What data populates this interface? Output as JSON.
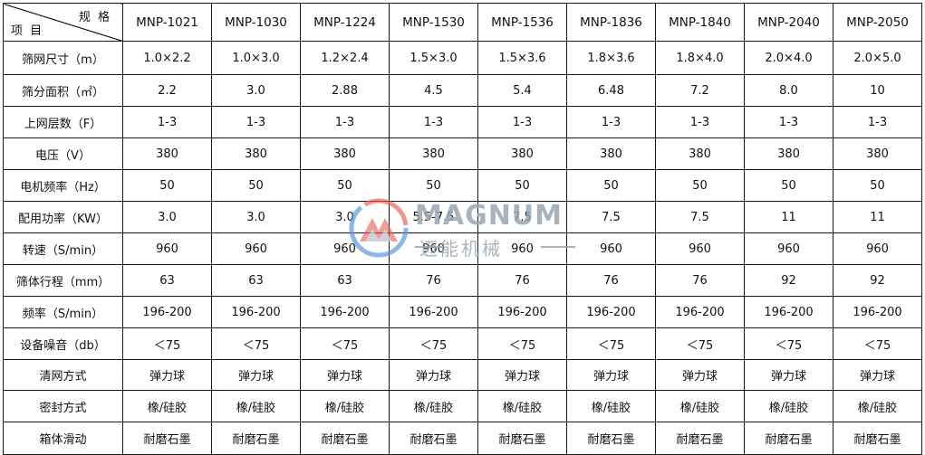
{
  "corner": {
    "spec_label": "规 格",
    "item_label": "项 目"
  },
  "models": [
    "MNP-1021",
    "MNP-1030",
    "MNP-1224",
    "MNP-1530",
    "MNP-1536",
    "MNP-1836",
    "MNP-1840",
    "MNP-2040",
    "MNP-2050"
  ],
  "rows": [
    {
      "label": "筛网尺寸（m）",
      "values": [
        "1.0×2.2",
        "1.0×3.0",
        "1.2×2.4",
        "1.5×3.0",
        "1.5×3.6",
        "1.8×3.6",
        "1.8×4.0",
        "2.0×4.0",
        "2.0×5.0"
      ]
    },
    {
      "label": "筛分面积（㎡）",
      "values": [
        "2.2",
        "3.0",
        "2.88",
        "4.5",
        "5.4",
        "6.48",
        "7.2",
        "8.0",
        "10"
      ]
    },
    {
      "label": "上网层数（F）",
      "values": [
        "1-3",
        "1-3",
        "1-3",
        "1-3",
        "1-3",
        "1-3",
        "1-3",
        "1-3",
        "1-3"
      ]
    },
    {
      "label": "电压（V）",
      "values": [
        "380",
        "380",
        "380",
        "380",
        "380",
        "380",
        "380",
        "380",
        "380"
      ]
    },
    {
      "label": "电机频率（Hz）",
      "values": [
        "50",
        "50",
        "50",
        "50",
        "50",
        "50",
        "50",
        "50",
        "50"
      ]
    },
    {
      "label": "配用功率（KW）",
      "values": [
        "3.0",
        "3.0",
        "3.0",
        "5.5-7.5",
        "7.5",
        "7.5",
        "7.5",
        "11",
        "11"
      ]
    },
    {
      "label": "转速（S/min）",
      "values": [
        "960",
        "960",
        "960",
        "960",
        "960",
        "960",
        "960",
        "960",
        "960"
      ]
    },
    {
      "label": "筛体行程（mm）",
      "values": [
        "63",
        "63",
        "63",
        "76",
        "76",
        "76",
        "76",
        "92",
        "92"
      ]
    },
    {
      "label": "频率（S/min）",
      "values": [
        "196-200",
        "196-200",
        "196-200",
        "196-200",
        "196-200",
        "196-200",
        "196-200",
        "196-200",
        "196-200"
      ]
    },
    {
      "label": "设备噪音（db）",
      "values": [
        "＜75",
        "＜75",
        "＜75",
        "＜75",
        "＜75",
        "＜75",
        "＜75",
        "＜75",
        "＜75"
      ]
    },
    {
      "label": "清网方式",
      "values": [
        "弹力球",
        "弹力球",
        "弹力球",
        "弹力球",
        "弹力球",
        "弹力球",
        "弹力球",
        "弹力球",
        "弹力球"
      ]
    },
    {
      "label": "密封方式",
      "values": [
        "橡/硅胶",
        "橡/硅胶",
        "橡/硅胶",
        "橡/硅胶",
        "橡/硅胶",
        "橡/硅胶",
        "橡/硅胶",
        "橡/硅胶",
        "橡/硅胶"
      ]
    },
    {
      "label": "箱体滑动",
      "values": [
        "耐磨石墨",
        "耐磨石墨",
        "耐磨石墨",
        "耐磨石墨",
        "耐磨石墨",
        "耐磨石墨",
        "耐磨石墨",
        "耐磨石墨",
        "耐磨石墨"
      ]
    }
  ],
  "watermark": {
    "brand": "MAGNUM",
    "subtitle": "迈能机械",
    "icon": "magnum-logo-icon",
    "colors": [
      "#e85a4f",
      "#4a90d9",
      "#9aa6b3"
    ]
  }
}
